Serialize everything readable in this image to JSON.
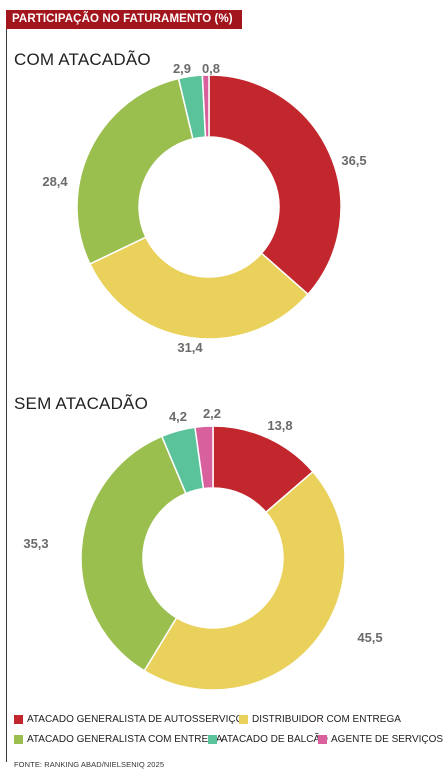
{
  "header": {
    "title": "PARTICIPAÇÃO NO FATURAMENTO (%)"
  },
  "colors": {
    "autosservico": "#c1272d",
    "distribuidor": "#ead15c",
    "entrega": "#9abf4f",
    "balcao": "#5bc399",
    "servicos": "#d7609d"
  },
  "chart_data": [
    {
      "type": "pie",
      "title": "COM ATACADÃO",
      "slices": [
        {
          "name": "ATACADO GENERALISTA DE AUTOSSERVIÇO",
          "label": "36,5",
          "value": 36.5,
          "color": "#c1272d"
        },
        {
          "name": "DISTRIBUIDOR COM ENTREGA",
          "label": "31,4",
          "value": 31.4,
          "color": "#ead15c"
        },
        {
          "name": "ATACADO GENERALISTA COM ENTREGA",
          "label": "28,4",
          "value": 28.4,
          "color": "#9abf4f"
        },
        {
          "name": "ATACADO DE BALCÃO",
          "label": "2,9",
          "value": 2.9,
          "color": "#5bc399"
        },
        {
          "name": "AGENTE DE SERVIÇOS",
          "label": "0,8",
          "value": 0.8,
          "color": "#d7609d"
        }
      ]
    },
    {
      "type": "pie",
      "title": "SEM ATACADÃO",
      "slices": [
        {
          "name": "ATACADO GENERALISTA DE AUTOSSERVIÇO",
          "label": "13,8",
          "value": 13.8,
          "color": "#c1272d"
        },
        {
          "name": "DISTRIBUIDOR COM ENTREGA",
          "label": "45,5",
          "value": 45.5,
          "color": "#ead15c"
        },
        {
          "name": "ATACADO GENERALISTA COM ENTREGA",
          "label": "35,3",
          "value": 35.3,
          "color": "#9abf4f"
        },
        {
          "name": "ATACADO DE BALCÃO",
          "label": "4,2",
          "value": 4.2,
          "color": "#5bc399"
        },
        {
          "name": "AGENTE DE SERVIÇOS",
          "label": "2,2",
          "value": 2.2,
          "color": "#d7609d"
        }
      ]
    }
  ],
  "legend": [
    {
      "label": "ATACADO GENERALISTA DE AUTOSSERVIÇO",
      "color": "#c1272d"
    },
    {
      "label": "DISTRIBUIDOR COM ENTREGA",
      "color": "#ead15c"
    },
    {
      "label": "ATACADO GENERALISTA COM ENTREGA",
      "color": "#9abf4f"
    },
    {
      "label": "ATACADO DE BALCÃO",
      "color": "#5bc399"
    },
    {
      "label": "AGENTE DE SERVIÇOS",
      "color": "#d7609d"
    }
  ],
  "source": "FONTE: RANKING ABAD/NIELSENIQ 2025"
}
